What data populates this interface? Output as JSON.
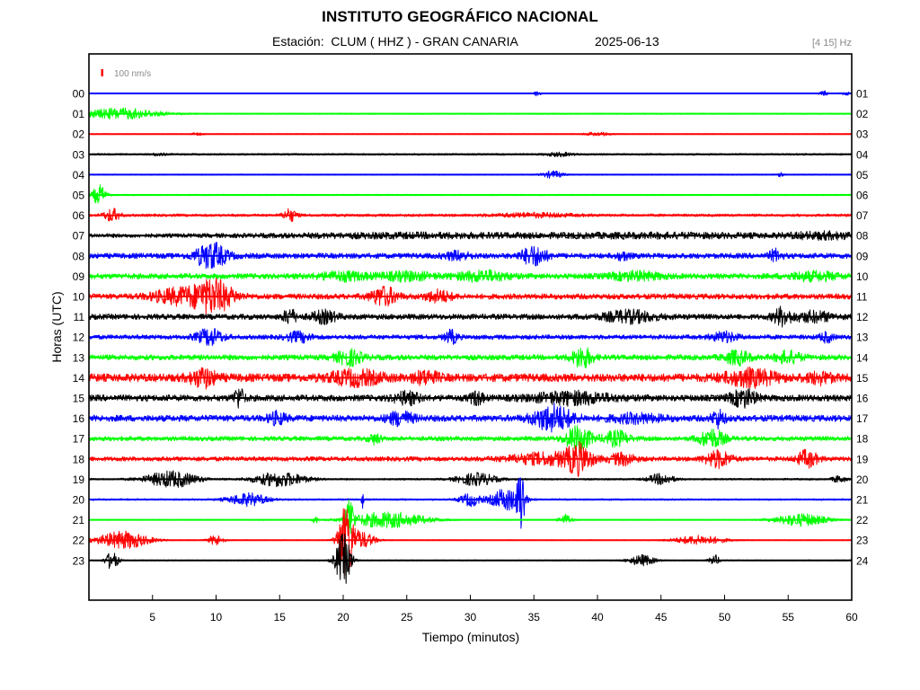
{
  "header": {
    "title": "INSTITUTO GEOGRÁFICO NACIONAL",
    "station_prefix": "Estación:",
    "station": "CLUM ( HHZ ) - GRAN CANARIA",
    "date": "2025-06-13",
    "filter": "[4 15] Hz"
  },
  "chart_data": {
    "type": "line",
    "title": "INSTITUTO GEOGRÁFICO NACIONAL",
    "xlabel": "Tiempo (minutos)",
    "ylabel": "Horas (UTC)",
    "xlim": [
      0,
      60
    ],
    "x_ticks": [
      5,
      10,
      15,
      20,
      25,
      30,
      35,
      40,
      45,
      50,
      55,
      60
    ],
    "scale_label": "100 nm/s",
    "scale_color": "#ff0000",
    "grid": false,
    "left_labels": [
      "00",
      "01",
      "02",
      "03",
      "04",
      "05",
      "06",
      "07",
      "08",
      "09",
      "10",
      "11",
      "12",
      "13",
      "14",
      "15",
      "16",
      "17",
      "18",
      "19",
      "20",
      "21",
      "22",
      "23"
    ],
    "right_labels": [
      "01",
      "02",
      "03",
      "04",
      "05",
      "06",
      "07",
      "08",
      "09",
      "10",
      "11",
      "12",
      "13",
      "14",
      "15",
      "16",
      "17",
      "18",
      "19",
      "20",
      "21",
      "22",
      "23",
      "24"
    ],
    "trace_colors": [
      "#0000ff",
      "#00ff00",
      "#ff0000",
      "#000000"
    ],
    "traces": [
      {
        "hour": "00",
        "noise": 0.5,
        "events": [
          [
            35.3,
            3,
            0.3
          ],
          [
            57.8,
            3,
            0.3
          ],
          [
            59.6,
            1.5,
            0.5
          ]
        ]
      },
      {
        "hour": "01",
        "noise": 0.7,
        "events": [
          [
            2.5,
            6,
            3
          ]
        ]
      },
      {
        "hour": "02",
        "noise": 0.5,
        "events": [
          [
            8.5,
            1.5,
            0.5
          ],
          [
            40,
            2,
            1
          ]
        ]
      },
      {
        "hour": "03",
        "noise": 1.0,
        "events": [
          [
            5.5,
            1.5,
            0.5
          ],
          [
            37,
            2,
            1
          ]
        ]
      },
      {
        "hour": "04",
        "noise": 0.6,
        "events": [
          [
            36.5,
            4,
            0.8
          ],
          [
            54.3,
            2.5,
            0.3
          ]
        ]
      },
      {
        "hour": "05",
        "noise": 0.8,
        "events": [
          [
            0.8,
            11,
            0.5
          ]
        ]
      },
      {
        "hour": "06",
        "noise": 1.5,
        "events": [
          [
            1.8,
            7,
            0.6
          ],
          [
            15.8,
            7,
            0.5
          ],
          [
            35,
            2,
            3
          ]
        ]
      },
      {
        "hour": "07",
        "noise": 2.2,
        "events": [
          [
            25,
            2,
            10
          ],
          [
            45,
            2,
            10
          ],
          [
            58,
            3,
            3
          ]
        ]
      },
      {
        "hour": "08",
        "noise": 3.0,
        "events": [
          [
            9.6,
            14,
            1.2
          ],
          [
            35,
            10,
            1
          ],
          [
            29,
            4,
            1
          ],
          [
            54,
            6,
            0.5
          ],
          [
            42,
            4,
            0.5
          ]
        ]
      },
      {
        "hour": "09",
        "noise": 3.0,
        "events": [
          [
            20,
            4,
            2
          ],
          [
            25,
            4,
            2
          ],
          [
            31,
            5,
            2
          ],
          [
            43,
            4,
            2
          ],
          [
            57,
            4,
            2
          ]
        ]
      },
      {
        "hour": "10",
        "noise": 3.0,
        "events": [
          [
            9.8,
            18,
            1.5
          ],
          [
            7,
            8,
            2
          ],
          [
            23.2,
            10,
            1
          ],
          [
            27.5,
            6,
            1
          ]
        ]
      },
      {
        "hour": "11",
        "noise": 3.0,
        "events": [
          [
            15.8,
            8,
            0.5
          ],
          [
            18.5,
            6,
            1
          ],
          [
            42.5,
            6,
            2
          ],
          [
            54.5,
            9,
            0.7
          ],
          [
            57,
            5,
            1.5
          ]
        ]
      },
      {
        "hour": "12",
        "noise": 2.5,
        "events": [
          [
            9.5,
            9,
            1
          ],
          [
            16.5,
            5,
            1
          ],
          [
            28.5,
            7,
            0.5
          ],
          [
            50,
            5,
            1
          ],
          [
            58,
            5,
            0.5
          ]
        ]
      },
      {
        "hour": "13",
        "noise": 3.0,
        "events": [
          [
            20.5,
            8,
            1
          ],
          [
            38.8,
            11,
            0.8
          ],
          [
            51,
            7,
            1
          ],
          [
            55,
            6,
            1
          ]
        ]
      },
      {
        "hour": "14",
        "noise": 4.5,
        "events": [
          [
            9,
            9,
            1
          ],
          [
            21,
            7,
            2
          ],
          [
            26.5,
            6,
            1
          ],
          [
            52,
            8,
            2
          ],
          [
            57.5,
            5,
            1
          ]
        ]
      },
      {
        "hour": "15",
        "noise": 3.5,
        "events": [
          [
            11.8,
            11,
            0.4
          ],
          [
            25,
            6,
            1
          ],
          [
            30.5,
            7,
            0.5
          ],
          [
            38,
            6,
            3
          ],
          [
            51.5,
            9,
            1
          ]
        ]
      },
      {
        "hour": "16",
        "noise": 3.5,
        "events": [
          [
            14.8,
            6,
            0.7
          ],
          [
            24.5,
            7,
            1
          ],
          [
            36.5,
            14,
            1.5
          ],
          [
            49.5,
            9,
            0.5
          ],
          [
            43,
            4,
            2
          ]
        ]
      },
      {
        "hour": "17",
        "noise": 2.5,
        "events": [
          [
            38.5,
            14,
            1
          ],
          [
            41.5,
            8,
            1
          ],
          [
            49,
            10,
            1
          ],
          [
            22.5,
            5,
            0.5
          ]
        ]
      },
      {
        "hour": "18",
        "noise": 2.5,
        "events": [
          [
            36,
            6,
            3
          ],
          [
            38.5,
            14,
            1
          ],
          [
            42,
            6,
            1
          ],
          [
            49.5,
            9,
            1
          ],
          [
            56.5,
            9,
            0.8
          ]
        ]
      },
      {
        "hour": "19",
        "noise": 1.0,
        "events": [
          [
            6.5,
            9,
            2
          ],
          [
            15,
            8,
            2
          ],
          [
            30.5,
            7,
            1.5
          ],
          [
            45,
            6,
            1
          ],
          [
            59,
            4,
            0.5
          ]
        ]
      },
      {
        "hour": "20",
        "noise": 1.0,
        "events": [
          [
            12.5,
            7,
            1.5
          ],
          [
            30,
            7,
            0.8
          ],
          [
            32.8,
            12,
            1.2
          ],
          [
            34,
            36,
            0.3
          ],
          [
            21.5,
            10,
            0.1
          ]
        ]
      },
      {
        "hour": "21",
        "noise": 0.6,
        "events": [
          [
            23.5,
            9,
            3
          ],
          [
            20.5,
            26,
            0.3
          ],
          [
            37.5,
            6,
            0.5
          ],
          [
            56,
            7,
            2
          ],
          [
            17.8,
            4,
            0.2
          ]
        ]
      },
      {
        "hour": "22",
        "noise": 0.5,
        "events": [
          [
            2.7,
            10,
            2
          ],
          [
            20.2,
            40,
            0.6
          ],
          [
            21.5,
            9,
            1
          ],
          [
            10,
            6,
            0.6
          ],
          [
            48,
            5,
            2
          ]
        ]
      },
      {
        "hour": "23",
        "noise": 0.6,
        "events": [
          [
            1.8,
            10,
            0.5
          ],
          [
            20,
            30,
            0.6
          ],
          [
            43.5,
            6,
            1
          ],
          [
            49.2,
            6,
            0.4
          ]
        ]
      }
    ]
  }
}
